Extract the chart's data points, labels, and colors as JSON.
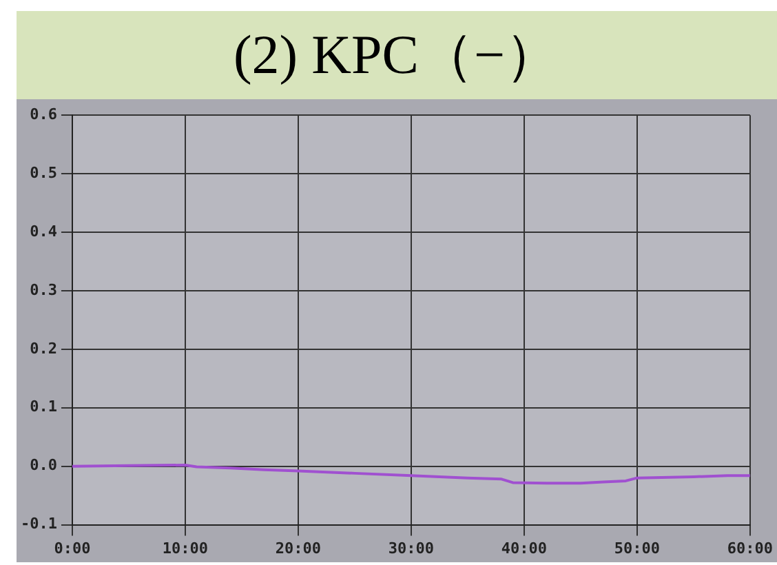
{
  "chart_data": {
    "type": "line",
    "title": "(2) KPC（−）",
    "x": [
      0,
      5,
      10,
      11,
      14,
      17,
      20,
      25,
      30,
      35,
      38,
      39,
      42,
      45,
      47,
      49,
      50,
      55,
      58,
      60
    ],
    "series": [
      {
        "color": "#a050d0",
        "values": [
          0,
          0.001,
          0.002,
          -0.001,
          -0.003,
          -0.006,
          -0.008,
          -0.012,
          -0.016,
          -0.02,
          -0.022,
          -0.028,
          -0.029,
          -0.029,
          -0.027,
          -0.025,
          -0.02,
          -0.018,
          -0.016,
          -0.016
        ]
      }
    ],
    "xlim": [
      0,
      60
    ],
    "xticks": [
      {
        "value": 0,
        "label": "0:00"
      },
      {
        "value": 10,
        "label": "10:00"
      },
      {
        "value": 20,
        "label": "20:00"
      },
      {
        "value": 30,
        "label": "30:00"
      },
      {
        "value": 40,
        "label": "40:00"
      },
      {
        "value": 50,
        "label": "50:00"
      },
      {
        "value": 60,
        "label": "60:00"
      }
    ],
    "ylim": [
      -0.1,
      0.6
    ],
    "yticks": [
      {
        "value": -0.1,
        "label": "-0.1"
      },
      {
        "value": 0,
        "label": "0.0"
      },
      {
        "value": 0.1,
        "label": "0.1"
      },
      {
        "value": 0.2,
        "label": "0.2"
      },
      {
        "value": 0.3,
        "label": "0.3"
      },
      {
        "value": 0.4,
        "label": "0.4"
      },
      {
        "value": 0.5,
        "label": "0.5"
      },
      {
        "value": 0.6,
        "label": "0.6"
      }
    ],
    "grid": true,
    "legend": false,
    "marker": "none",
    "line_style": "solid"
  }
}
